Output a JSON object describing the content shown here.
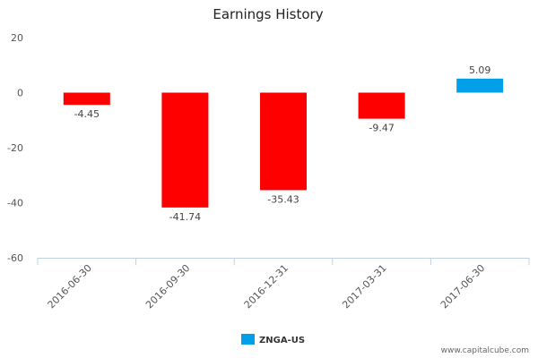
{
  "chart_data": {
    "type": "bar",
    "title": "Earnings History",
    "categories": [
      "2016-06-30",
      "2016-09-30",
      "2016-12-31",
      "2017-03-31",
      "2017-06-30"
    ],
    "series": [
      {
        "name": "ZNGA-US",
        "values": [
          -4.45,
          -41.74,
          -35.43,
          -9.47,
          5.09
        ],
        "data_labels": [
          "-4.45",
          "-41.74",
          "-35.43",
          "-9.47",
          "5.09"
        ]
      }
    ],
    "ylim": [
      -60,
      20
    ],
    "yticks": [
      "20",
      "0",
      "-20",
      "-40",
      "-60"
    ],
    "positive_color": "#00a0e8",
    "negative_color": "#ff0000",
    "legend_color": "#00a0e8",
    "legend_position": "bottom-center",
    "grid": false
  },
  "credit": "www.capitalcube.com"
}
